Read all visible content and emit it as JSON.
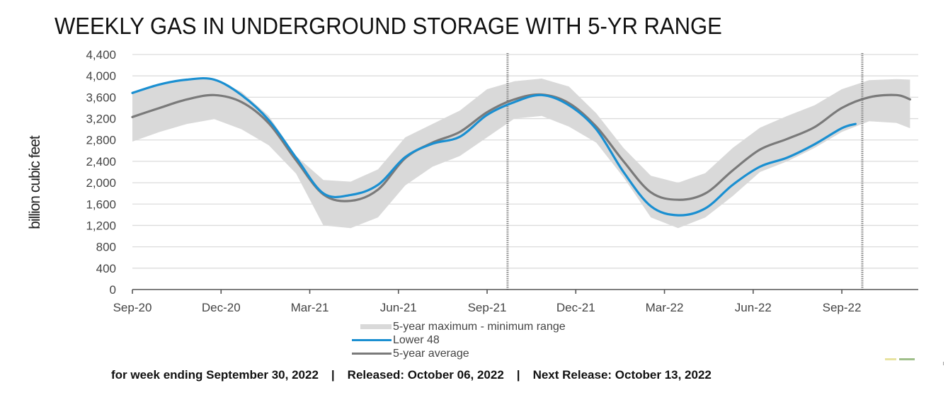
{
  "chart_data": {
    "type": "line",
    "title": "WEEKLY GAS IN UNDERGROUND STORAGE WITH 5-YR RANGE",
    "xlabel": "",
    "ylabel": "billion cubic feet",
    "ylim": [
      0,
      4400
    ],
    "yticks": [
      0,
      400,
      800,
      1200,
      1600,
      2000,
      2400,
      2800,
      3200,
      3600,
      4000,
      4400
    ],
    "ytick_labels": [
      "0",
      "400",
      "800",
      "1,200",
      "1,600",
      "2,000",
      "2,400",
      "2,800",
      "3,200",
      "3,600",
      "4,000",
      "4,400"
    ],
    "x_unit": "weeks since Sep-20",
    "xlim": [
      0,
      115
    ],
    "xticks": [
      0,
      13,
      26,
      39,
      52,
      65,
      78,
      91,
      104
    ],
    "xtick_labels": [
      "Sep-20",
      "Dec-20",
      "Mar-21",
      "Jun-21",
      "Sep-21",
      "Dec-21",
      "Mar-22",
      "Jun-22",
      "Sep-22"
    ],
    "grid": true,
    "vertical_markers": [
      55,
      107
    ],
    "legend_position": "bottom-center",
    "series": [
      {
        "name": "5-year maximum - minimum range",
        "kind": "band",
        "color": "#d9d9d9",
        "x": [
          0,
          4,
          8,
          12,
          16,
          20,
          24,
          28,
          32,
          36,
          40,
          44,
          48,
          52,
          56,
          60,
          64,
          68,
          72,
          76,
          80,
          84,
          88,
          92,
          96,
          100,
          104,
          108,
          112,
          114
        ],
        "max": [
          3700,
          3860,
          3950,
          3950,
          3700,
          3250,
          2500,
          2050,
          2020,
          2250,
          2850,
          3100,
          3350,
          3750,
          3900,
          3950,
          3800,
          3300,
          2650,
          2130,
          2000,
          2180,
          2650,
          3030,
          3250,
          3450,
          3750,
          3920,
          3940,
          3930
        ],
        "min": [
          2770,
          2950,
          3100,
          3190,
          3000,
          2700,
          2170,
          1200,
          1150,
          1350,
          1950,
          2300,
          2500,
          2850,
          3200,
          3250,
          3050,
          2750,
          2100,
          1350,
          1150,
          1350,
          1750,
          2200,
          2400,
          2650,
          2950,
          3150,
          3120,
          3020
        ]
      },
      {
        "name": "Lower 48",
        "kind": "line",
        "color": "#1a8fd1",
        "x": [
          0,
          4,
          8,
          12,
          16,
          20,
          24,
          28,
          32,
          36,
          40,
          44,
          48,
          52,
          56,
          60,
          64,
          68,
          72,
          76,
          80,
          84,
          88,
          92,
          96,
          100,
          104,
          106
        ],
        "values": [
          3680,
          3840,
          3930,
          3930,
          3640,
          3170,
          2470,
          1800,
          1770,
          1960,
          2480,
          2730,
          2860,
          3270,
          3510,
          3640,
          3450,
          3000,
          2200,
          1560,
          1390,
          1520,
          1960,
          2300,
          2470,
          2720,
          3020,
          3100
        ]
      },
      {
        "name": "5-year average",
        "kind": "line",
        "color": "#7a7a7a",
        "x": [
          0,
          4,
          8,
          12,
          16,
          20,
          24,
          28,
          32,
          36,
          40,
          44,
          48,
          52,
          56,
          60,
          64,
          68,
          72,
          76,
          80,
          84,
          88,
          92,
          96,
          100,
          104,
          108,
          112,
          114
        ],
        "values": [
          3230,
          3400,
          3560,
          3640,
          3510,
          3110,
          2420,
          1780,
          1660,
          1870,
          2460,
          2750,
          2950,
          3320,
          3560,
          3650,
          3490,
          3050,
          2400,
          1820,
          1680,
          1800,
          2230,
          2620,
          2820,
          3040,
          3400,
          3600,
          3640,
          3560
        ]
      }
    ]
  },
  "legend": {
    "items": [
      {
        "label": "5-year maximum - minimum range",
        "color": "#d9d9d9"
      },
      {
        "label": "Lower 48",
        "color": "#1a8fd1"
      },
      {
        "label": "5-year average",
        "color": "#7a7a7a"
      }
    ]
  },
  "footer": {
    "week_ending": "for week ending September 30, 2022",
    "released": "Released: October 06, 2022",
    "next_release": "Next Release: October 13, 2022",
    "separator": "|"
  }
}
